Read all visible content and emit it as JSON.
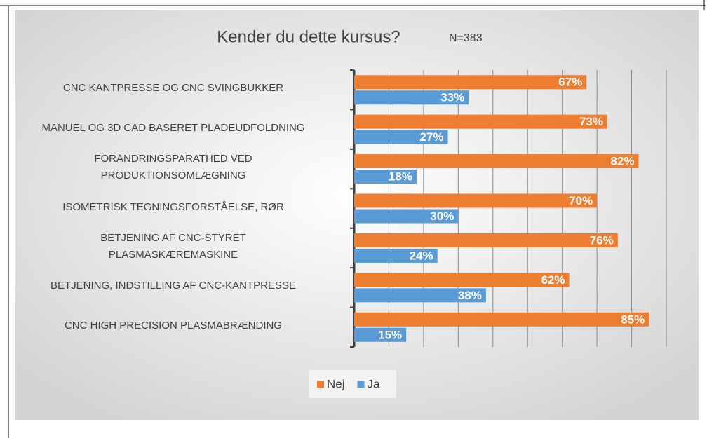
{
  "chart_data": {
    "type": "hbar",
    "title": "Kender du dette kursus?",
    "annotation": "N=383",
    "categories": [
      "CNC KANTPRESSE OG CNC SVINGBUKKER",
      "MANUEL OG 3D CAD BASERET PLADEUDFOLDNING",
      "FORANDRINGSPARATHED VED\nPRODUKTIONSOMLÆGNING",
      "ISOMETRISK TEGNINGSFORSTÅELSE, RØR",
      "BETJENING AF CNC-STYRET\nPLASMASKÆREMASKINE",
      "BETJENING, INDSTILLING AF CNC-KANTPRESSE",
      "CNC HIGH PRECISION PLASMABRÆNDING"
    ],
    "series": [
      {
        "name": "Nej",
        "color": "#ED7D31",
        "values": [
          67,
          73,
          82,
          70,
          76,
          62,
          85
        ],
        "value_labels": [
          "67%",
          "73%",
          "82%",
          "70%",
          "76%",
          "62%",
          "85%"
        ]
      },
      {
        "name": "Ja",
        "color": "#5B9BD5",
        "values": [
          33,
          27,
          18,
          30,
          24,
          38,
          15
        ],
        "value_labels": [
          "33%",
          "27%",
          "18%",
          "30%",
          "24%",
          "38%",
          "15%"
        ]
      }
    ],
    "xlim": [
      0,
      90
    ],
    "xticks": [
      0,
      10,
      20,
      30,
      40,
      50,
      60,
      70,
      80,
      90
    ],
    "grid": true,
    "legend": "bottom"
  }
}
